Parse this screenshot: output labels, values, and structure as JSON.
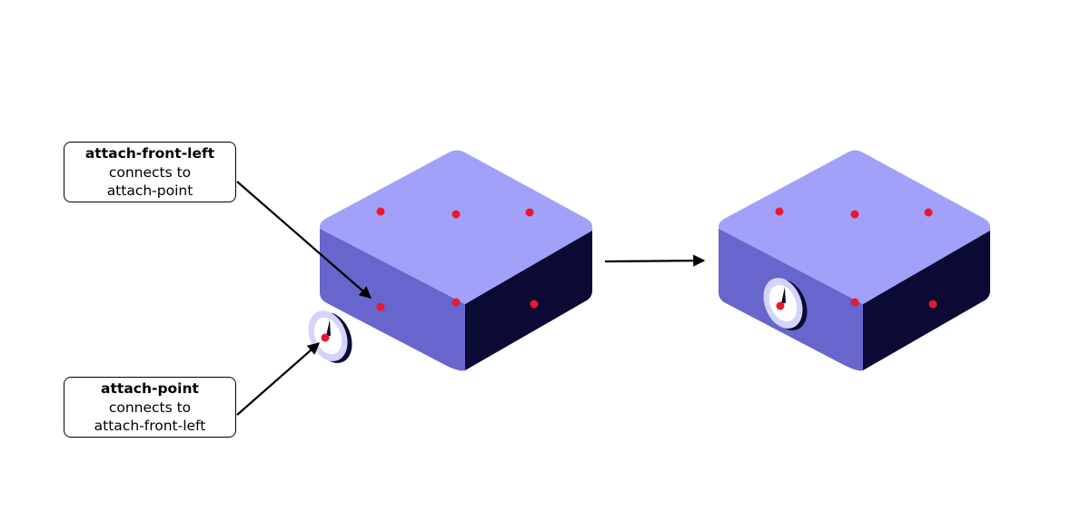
{
  "callouts": [
    {
      "title": "attach-front-left",
      "line1": "connects to",
      "line2": "attach-point"
    },
    {
      "title": "attach-point",
      "line1": "connects to",
      "line2": "attach-front-left"
    }
  ],
  "colors": {
    "box_top": "#a1a1fa",
    "box_front": "#6666cc",
    "box_side": "#0a0a35",
    "attach_dot": "#e8192c",
    "gauge_face": "#ffffff",
    "gauge_rim": "#d4d4fb",
    "arrow": "#000000"
  }
}
